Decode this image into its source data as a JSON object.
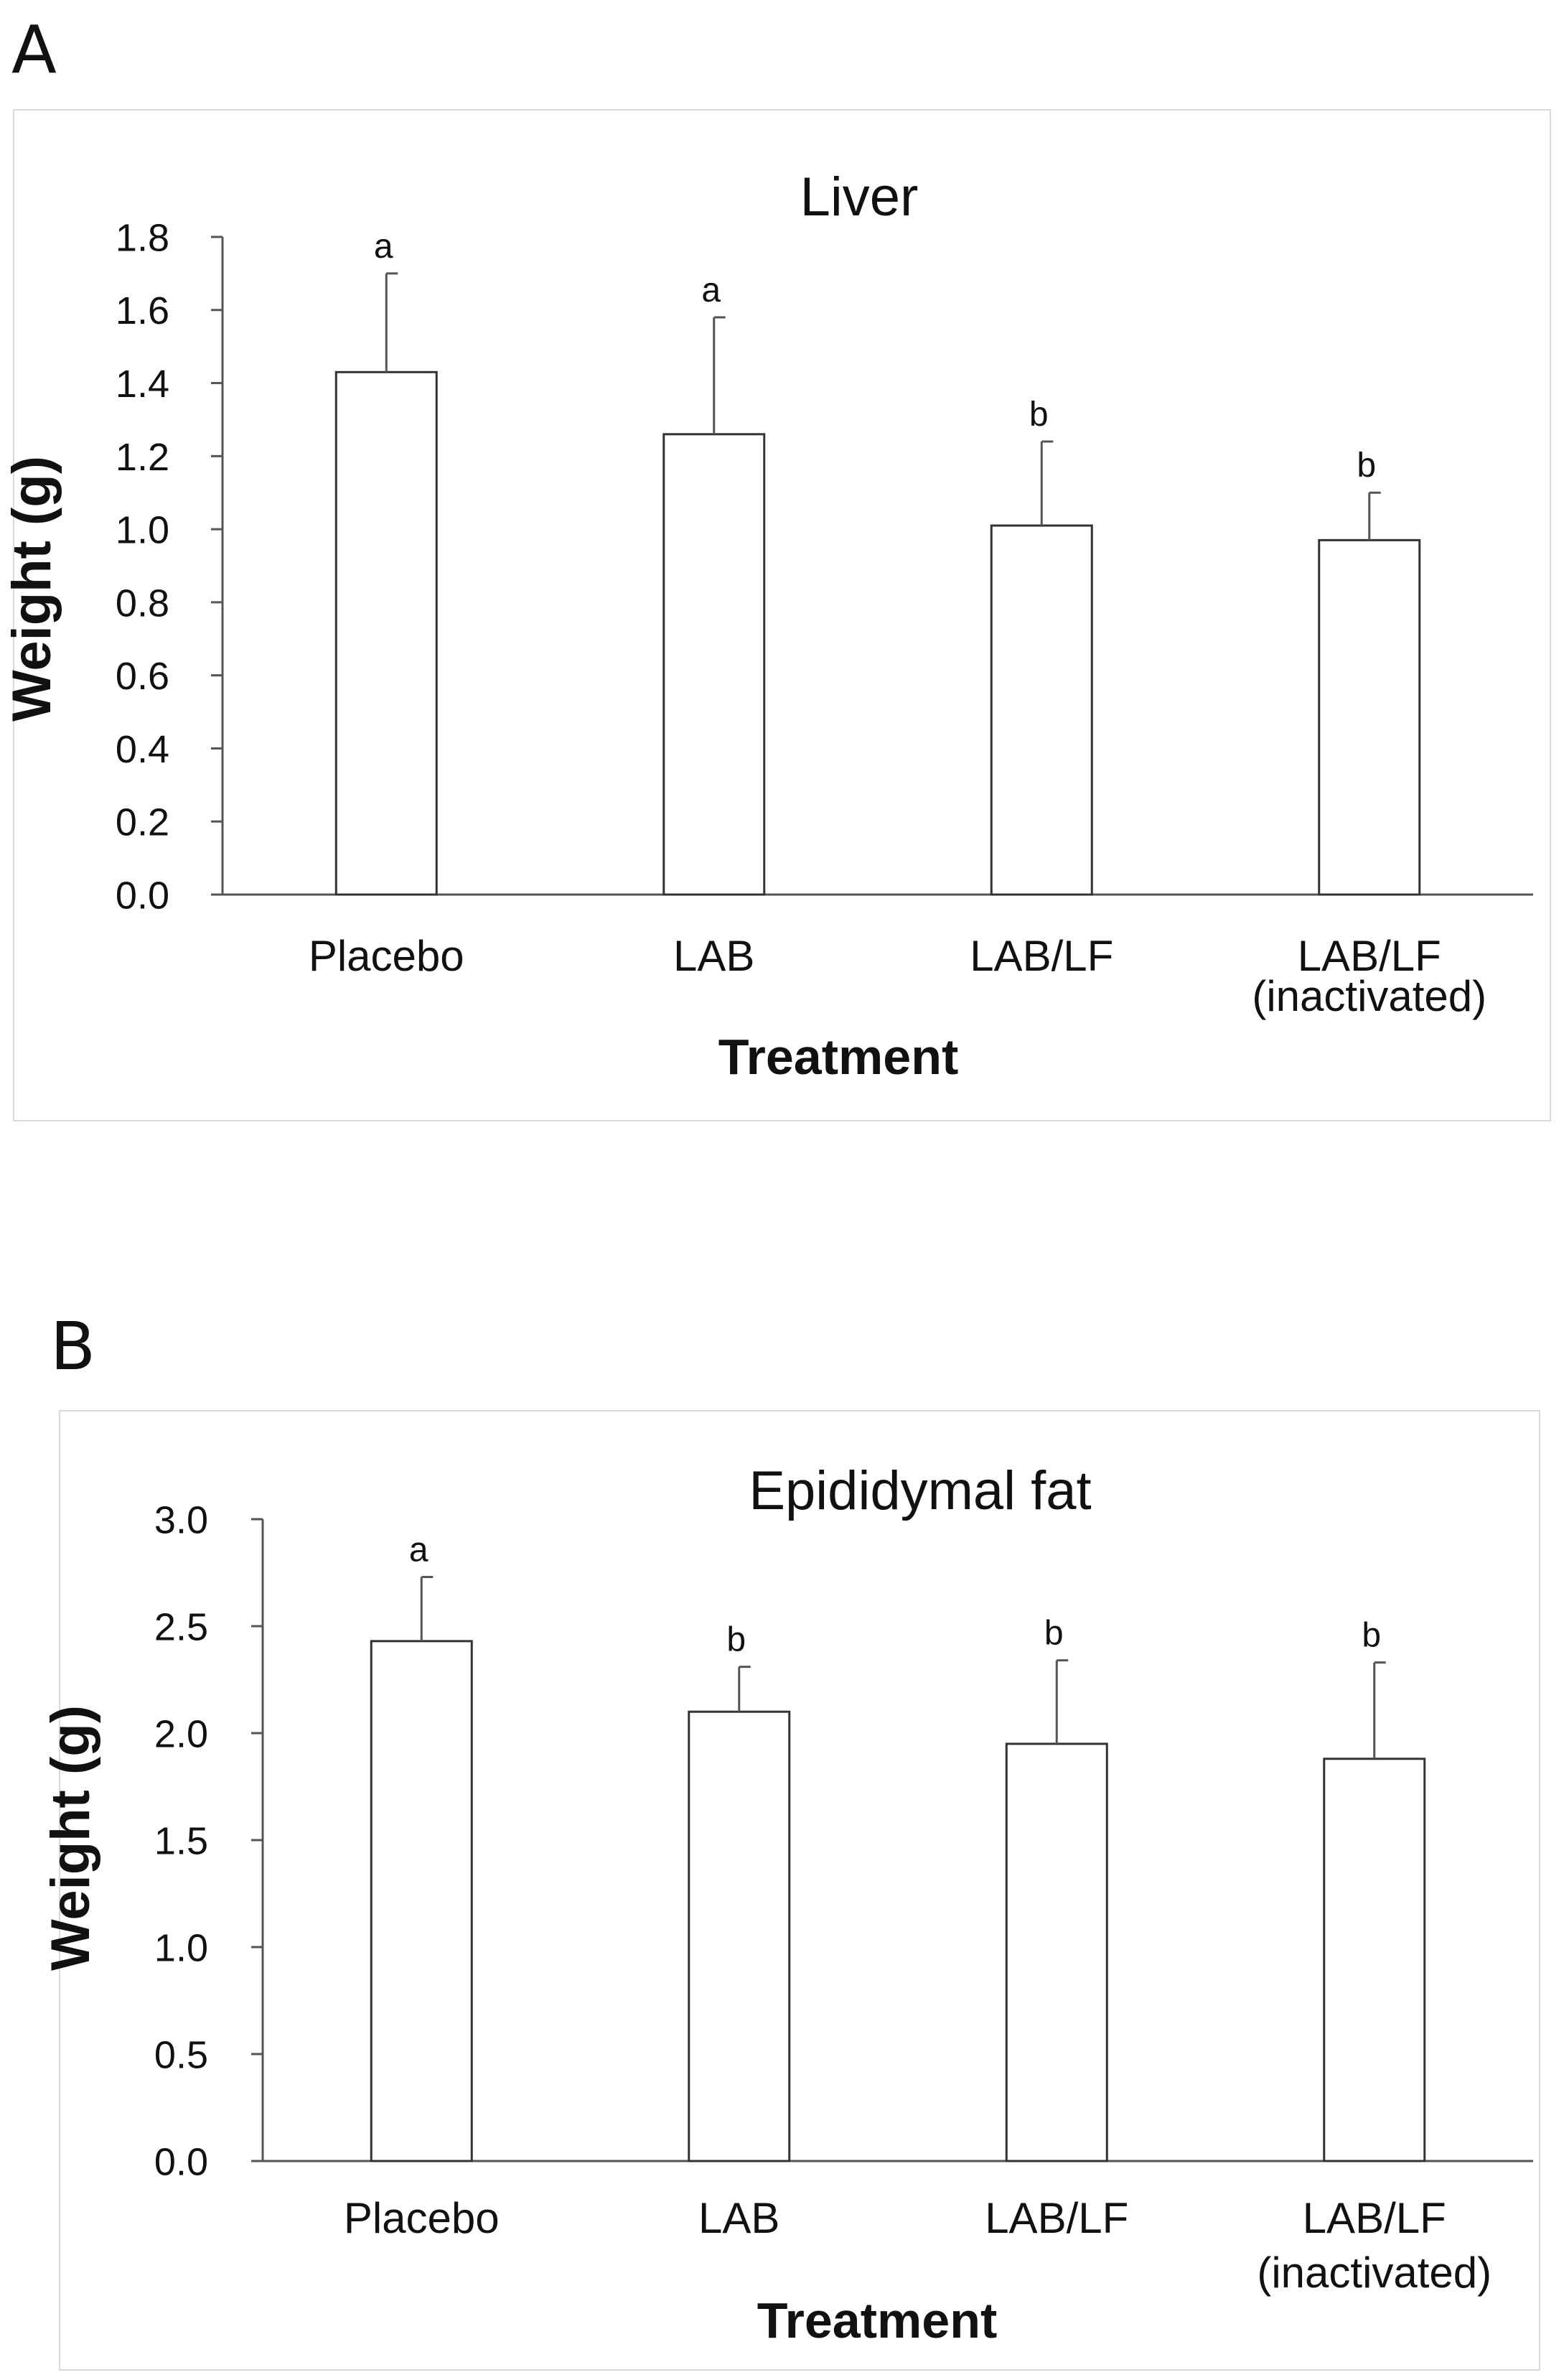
{
  "panels": [
    {
      "label": "A"
    },
    {
      "label": "B"
    }
  ],
  "chart_data": [
    {
      "type": "bar",
      "title": "Liver",
      "xlabel": "Treatment",
      "ylabel": "Weight (g)",
      "categories": [
        [
          "Placebo"
        ],
        [
          "LAB"
        ],
        [
          "LAB/LF"
        ],
        [
          "LAB/LF",
          "(inactivated)"
        ]
      ],
      "values": [
        1.43,
        1.26,
        1.01,
        0.97
      ],
      "errors": [
        0.27,
        0.32,
        0.23,
        0.13
      ],
      "significance": [
        "a",
        "a",
        "b",
        "b"
      ],
      "ylim": [
        0,
        1.8
      ],
      "yticks": [
        "0.0",
        "0.2",
        "0.4",
        "0.6",
        "0.8",
        "1.0",
        "1.2",
        "1.4",
        "1.6",
        "1.8"
      ],
      "grid": false,
      "colors": {
        "bar_fill": "#ffffff",
        "bar_stroke": "#333333",
        "axis": "#555555"
      }
    },
    {
      "type": "bar",
      "title": "Epididymal fat",
      "xlabel": "Treatment",
      "ylabel": "Weight (g)",
      "categories": [
        [
          "Placebo"
        ],
        [
          "LAB"
        ],
        [
          "LAB/LF"
        ],
        [
          "LAB/LF",
          "(inactivated)"
        ]
      ],
      "values": [
        2.43,
        2.1,
        1.95,
        1.88
      ],
      "errors": [
        0.3,
        0.21,
        0.39,
        0.45
      ],
      "significance": [
        "a",
        "b",
        "b",
        "b"
      ],
      "ylim": [
        0,
        3.0
      ],
      "yticks": [
        "0.0",
        "0.5",
        "1.0",
        "1.5",
        "2.0",
        "2.5",
        "3.0"
      ],
      "grid": false,
      "colors": {
        "bar_fill": "#ffffff",
        "bar_stroke": "#333333",
        "axis": "#555555"
      }
    }
  ]
}
